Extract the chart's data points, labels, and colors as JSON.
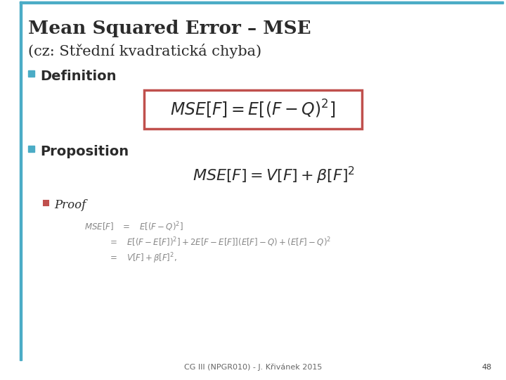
{
  "title_line1": "Mean Squared Error – MSE",
  "title_line2": "(cz: Střední kvadratická chyba)",
  "bullet1": "Definition",
  "formula1": "$MSE[F] = E[(F - Q)^{2}]$",
  "bullet2": "Proposition",
  "formula2": "$MSE[F] = V[F] + \\beta[F]^{2}$",
  "sub_bullet": "Proof",
  "proof_line1": "$MSE[F]\\quad = \\quad E[(F-Q)^2]$",
  "proof_line2": "$\\qquad\\quad = \\quad E[(F-E[F])^2] + 2E[F-E[F]](E[F]-Q)+(E[F]-Q)^2$",
  "proof_line3": "$\\qquad\\quad = \\quad V[F] + \\beta[F]^{2},$",
  "footer": "CG III (NPGR010) - J. Křivánek 2015",
  "page_num": "48",
  "bg_color": "#ffffff",
  "title_color": "#2b2b2b",
  "bullet_color": "#4bacc6",
  "sub_bullet_color": "#c0504d",
  "text_color": "#2b2b2b",
  "proof_color": "#888888",
  "box_color": "#c0504d",
  "top_bar_color": "#4bacc6",
  "left_bar_color": "#4bacc6"
}
